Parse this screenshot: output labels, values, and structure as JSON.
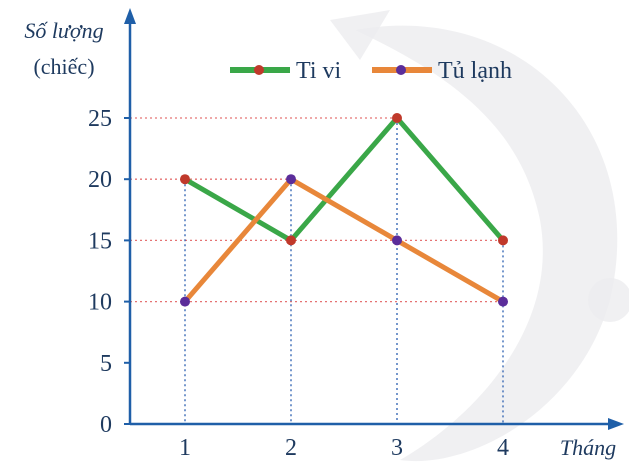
{
  "chart_data": {
    "type": "line",
    "categories": [
      1,
      2,
      3,
      4
    ],
    "x_tick_labels": [
      "1",
      "2",
      "3",
      "4"
    ],
    "y_tick_labels": [
      "0",
      "5",
      "10",
      "15",
      "20",
      "25"
    ],
    "ylim": [
      0,
      25
    ],
    "ylabel_line1": "Số lượng",
    "ylabel_line2": "(chiếc)",
    "xlabel": "Tháng",
    "grid": "dotted guide lines at data points",
    "legend_position": "top",
    "series": [
      {
        "name": "Ti vi",
        "values": [
          20,
          15,
          25,
          15
        ],
        "line_color": "#3aa748",
        "marker_color": "#c0392b"
      },
      {
        "name": "Tủ lạnh",
        "values": [
          10,
          20,
          15,
          10
        ],
        "line_color": "#e8873a",
        "marker_color": "#5b2d9a"
      }
    ],
    "axis_color": "#1f5fa8",
    "grid_h_color": "#e57373",
    "grid_v_color": "#2b5fb0"
  }
}
